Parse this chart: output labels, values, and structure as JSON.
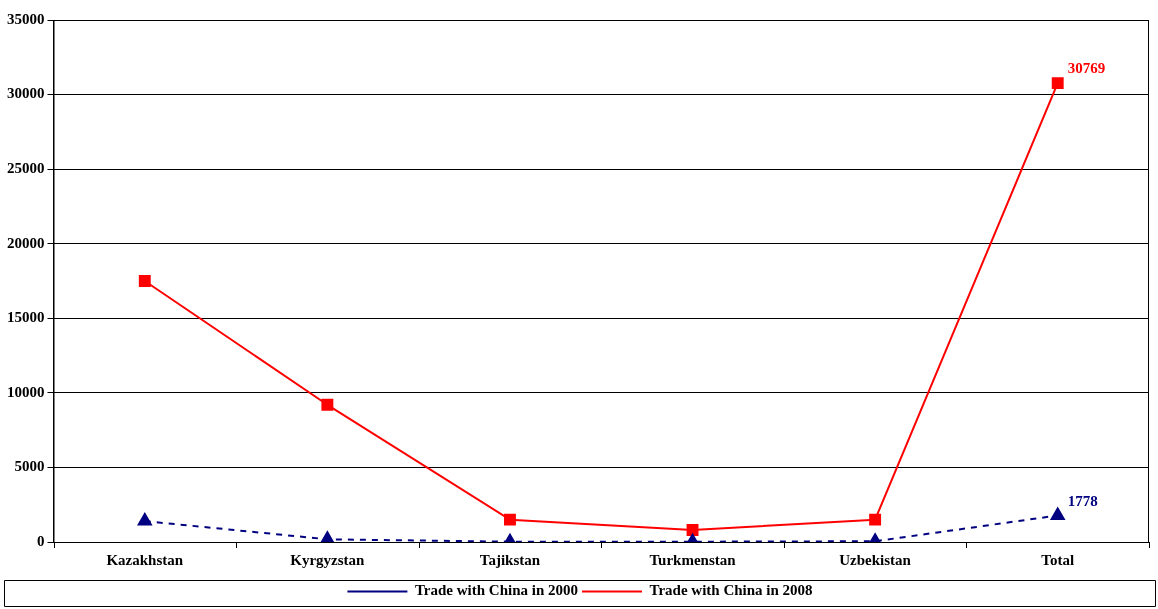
{
  "chart_data": {
    "type": "line",
    "categories": [
      "Kazakhstan",
      "Kyrgyzstan",
      "Tajikstan",
      "Turkmenstan",
      "Uzbekistan",
      "Total"
    ],
    "series": [
      {
        "name": "Trade with China in 2000",
        "color": "#000080",
        "values": [
          1400,
          180,
          20,
          20,
          50,
          1778
        ],
        "marker": "triangle",
        "line_style": "dashed",
        "value_labels": [
          null,
          null,
          null,
          null,
          null,
          "1778"
        ]
      },
      {
        "name": "Trade with China in 2008",
        "color": "#ff0000",
        "values": [
          17500,
          9200,
          1500,
          800,
          1500,
          30769
        ],
        "marker": "square",
        "line_style": "solid",
        "value_labels": [
          null,
          null,
          null,
          null,
          null,
          "30769"
        ]
      }
    ],
    "ylim": [
      0,
      35000
    ],
    "yticks": [
      0,
      5000,
      10000,
      15000,
      20000,
      25000,
      30000,
      35000
    ],
    "grid": "y",
    "legend": "bottom"
  }
}
